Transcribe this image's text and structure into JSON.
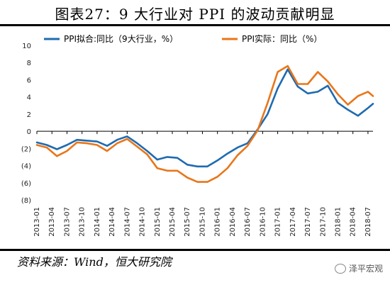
{
  "title": "图表27：9 大行业对 PPI 的波动贡献明显",
  "source": "资料来源：Wind，恒大研究院",
  "watermark": "泽平宏观",
  "chart_data": {
    "type": "line",
    "title": "图表27：9 大行业对 PPI 的波动贡献明显",
    "ylim": [
      -8,
      10
    ],
    "yticks": [
      10,
      8,
      6,
      4,
      2,
      0,
      -2,
      -4,
      -6,
      -8
    ],
    "ytick_labels": [
      "10",
      "8",
      "6",
      "4",
      "2",
      "0",
      "(2)",
      "(4)",
      "(6)",
      "(8)"
    ],
    "xticks": [
      "2013-01",
      "2013-04",
      "2013-07",
      "2013-10",
      "2014-01",
      "2014-04",
      "2014-07",
      "2014-10",
      "2015-01",
      "2015-04",
      "2015-07",
      "2015-10",
      "2016-01",
      "2016-04",
      "2016-07",
      "2016-10",
      "2017-01",
      "2017-04",
      "2017-07",
      "2017-10",
      "2018-01",
      "2018-04",
      "2018-07"
    ],
    "grid": false,
    "legend_position": "top",
    "series": [
      {
        "name": "PPI拟合:同比（9大行业，%）",
        "color": "#1f6bb0",
        "x": [
          "2013-01",
          "2013-03",
          "2013-05",
          "2013-07",
          "2013-09",
          "2013-11",
          "2014-01",
          "2014-03",
          "2014-05",
          "2014-07",
          "2014-09",
          "2014-11",
          "2015-01",
          "2015-03",
          "2015-05",
          "2015-07",
          "2015-09",
          "2015-11",
          "2016-01",
          "2016-03",
          "2016-05",
          "2016-07",
          "2016-09",
          "2016-11",
          "2017-01",
          "2017-03",
          "2017-05",
          "2017-07",
          "2017-09",
          "2017-11",
          "2018-01",
          "2018-03",
          "2018-05",
          "2018-07",
          "2018-08"
        ],
        "values": [
          -1.3,
          -1.6,
          -2.1,
          -1.6,
          -1.0,
          -1.1,
          -1.2,
          -1.7,
          -1.0,
          -0.6,
          -1.4,
          -2.3,
          -3.3,
          -3.0,
          -3.1,
          -3.9,
          -4.1,
          -4.1,
          -3.4,
          -2.6,
          -1.9,
          -1.4,
          0.2,
          2.0,
          5.0,
          7.2,
          5.2,
          4.4,
          4.6,
          5.3,
          3.3,
          2.5,
          1.8,
          2.7,
          3.2
        ]
      },
      {
        "name": "PPI实际：同比（%）",
        "color": "#e8761b",
        "x": [
          "2013-01",
          "2013-03",
          "2013-05",
          "2013-07",
          "2013-09",
          "2013-11",
          "2014-01",
          "2014-03",
          "2014-05",
          "2014-07",
          "2014-09",
          "2014-11",
          "2015-01",
          "2015-03",
          "2015-05",
          "2015-07",
          "2015-09",
          "2015-11",
          "2016-01",
          "2016-03",
          "2016-05",
          "2016-07",
          "2016-09",
          "2016-11",
          "2017-01",
          "2017-03",
          "2017-05",
          "2017-07",
          "2017-09",
          "2017-11",
          "2018-01",
          "2018-03",
          "2018-05",
          "2018-07",
          "2018-08"
        ],
        "values": [
          -1.6,
          -1.9,
          -2.9,
          -2.3,
          -1.3,
          -1.4,
          -1.6,
          -2.3,
          -1.4,
          -0.9,
          -1.8,
          -2.7,
          -4.3,
          -4.6,
          -4.6,
          -5.4,
          -5.9,
          -5.9,
          -5.3,
          -4.3,
          -2.8,
          -1.7,
          0.1,
          3.3,
          6.9,
          7.6,
          5.5,
          5.5,
          6.9,
          5.8,
          4.3,
          3.1,
          4.1,
          4.6,
          4.1
        ]
      }
    ]
  }
}
